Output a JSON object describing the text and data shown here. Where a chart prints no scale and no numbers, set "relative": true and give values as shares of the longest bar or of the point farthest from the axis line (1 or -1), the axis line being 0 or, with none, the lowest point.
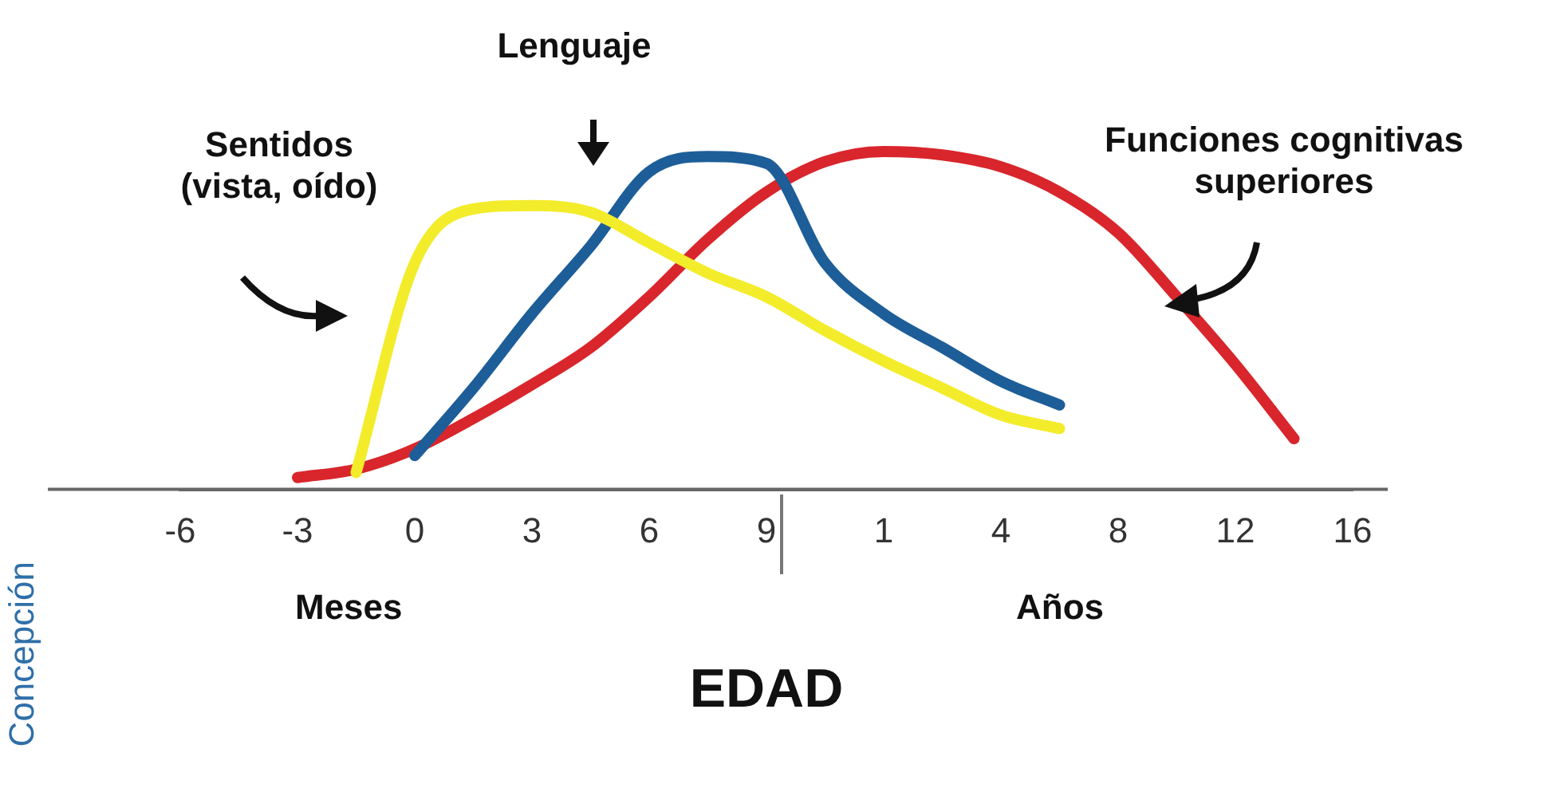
{
  "chart_data": {
    "type": "line",
    "relative": true,
    "xlabel": "EDAD",
    "legend": false,
    "marker": "none",
    "line_style": "solid",
    "categories": [
      "-6",
      null,
      "-3",
      null,
      "0",
      null,
      "3",
      null,
      "6",
      null,
      "9",
      null,
      "1",
      null,
      "4",
      null,
      "8",
      null,
      "12",
      null,
      "16"
    ],
    "series": [
      {
        "name": "Sentidos\n(vista, oído)",
        "color": "#f3ec2b",
        "values": [
          null,
          null,
          null,
          0.05,
          0.67,
          0.83,
          0.84,
          0.82,
          0.73,
          0.64,
          0.57,
          0.47,
          0.38,
          0.3,
          0.22,
          0.18,
          null,
          null,
          null,
          null,
          null
        ]
      },
      {
        "name": "Lenguaje",
        "color": "#1d5e98",
        "values": [
          null,
          null,
          null,
          null,
          0.1,
          0.3,
          0.52,
          0.72,
          0.94,
          0.985,
          0.965,
          0.67,
          0.52,
          0.42,
          0.32,
          0.25,
          null,
          null,
          null,
          null,
          null
        ]
      },
      {
        "name": "Funciones cognitivas\nsuperiores",
        "color": "#d8262c",
        "values": [
          null,
          null,
          0.035,
          0.06,
          0.12,
          0.21,
          0.31,
          0.42,
          0.57,
          0.74,
          0.88,
          0.97,
          1,
          0.99,
          0.955,
          0.88,
          0.76,
          0.57,
          0.37,
          0.15,
          null
        ]
      }
    ],
    "annotations": [
      "Meses",
      "Años",
      "Concepción"
    ]
  }
}
